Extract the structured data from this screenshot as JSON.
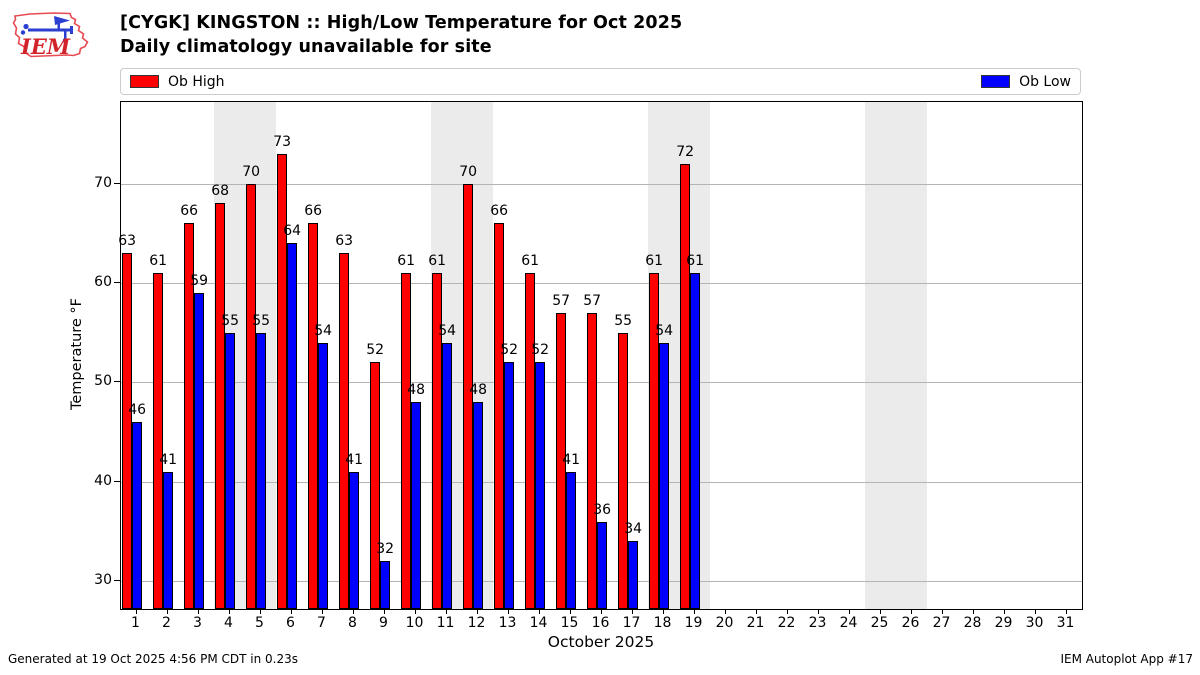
{
  "header": {
    "logo_text": "IEM",
    "title": "[CYGK] KINGSTON :: High/Low Temperature for Oct 2025",
    "subtitle": "Daily climatology unavailable for site"
  },
  "legend": {
    "high_label": "Ob High",
    "low_label": "Ob Low"
  },
  "chart_data": {
    "type": "bar",
    "title": "[CYGK] KINGSTON :: High/Low Temperature for Oct 2025",
    "subtitle": "Daily climatology unavailable for site",
    "xlabel": "October 2025",
    "ylabel": "Temperature °F",
    "ylim": [
      27.2,
      78.2
    ],
    "yticks": [
      30,
      40,
      50,
      60,
      70
    ],
    "days": [
      1,
      2,
      3,
      4,
      5,
      6,
      7,
      8,
      9,
      10,
      11,
      12,
      13,
      14,
      15,
      16,
      17,
      18,
      19,
      20,
      21,
      22,
      23,
      24,
      25,
      26,
      27,
      28,
      29,
      30,
      31
    ],
    "series": [
      {
        "name": "Ob High",
        "color": "#ff0000",
        "values": [
          63,
          61,
          66,
          68,
          70,
          73,
          66,
          63,
          52,
          61,
          61,
          70,
          66,
          61,
          57,
          57,
          55,
          61,
          72,
          null,
          null,
          null,
          null,
          null,
          null,
          null,
          null,
          null,
          null,
          null,
          null
        ]
      },
      {
        "name": "Ob Low",
        "color": "#0000ff",
        "values": [
          46,
          41,
          59,
          55,
          55,
          64,
          54,
          41,
          32,
          48,
          54,
          48,
          52,
          52,
          41,
          36,
          34,
          54,
          61,
          null,
          null,
          null,
          null,
          null,
          null,
          null,
          null,
          null,
          null,
          null,
          null
        ]
      }
    ],
    "weekend_bands": [
      [
        4,
        5
      ],
      [
        11,
        12
      ],
      [
        18,
        19
      ],
      [
        25,
        26
      ]
    ],
    "grid": true,
    "legend_position": "top",
    "band_color": "#ebebeb",
    "grid_color": "#b4b4b4"
  },
  "footer": {
    "generated": "Generated at 19 Oct 2025 4:56 PM CDT in 0.23s",
    "app": "IEM Autoplot App #17"
  }
}
